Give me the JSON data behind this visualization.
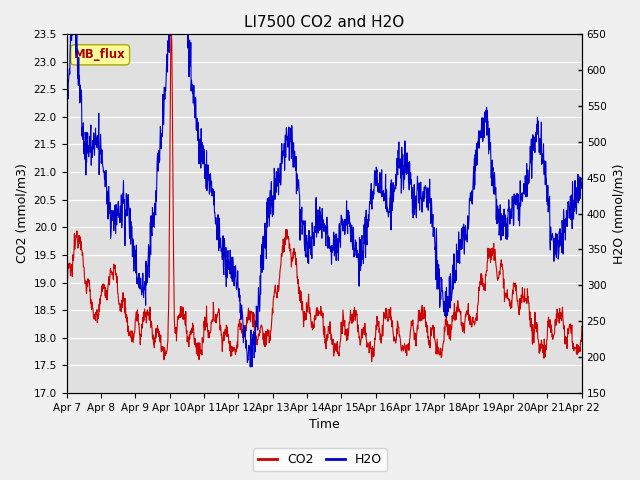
{
  "title": "LI7500 CO2 and H2O",
  "xlabel": "Time",
  "ylabel_left": "CO2 (mmol/m3)",
  "ylabel_right": "H2O (mmol/m3)",
  "co2_ylim": [
    17.0,
    23.5
  ],
  "h2o_ylim": [
    150,
    650
  ],
  "co2_yticks": [
    17.0,
    17.5,
    18.0,
    18.5,
    19.0,
    19.5,
    20.0,
    20.5,
    21.0,
    21.5,
    22.0,
    22.5,
    23.0,
    23.5
  ],
  "h2o_yticks": [
    150,
    200,
    250,
    300,
    350,
    400,
    450,
    500,
    550,
    600,
    650
  ],
  "xtick_labels": [
    "Apr 7",
    "Apr 8",
    "Apr 9",
    "Apr 10",
    "Apr 11",
    "Apr 12",
    "Apr 13",
    "Apr 14",
    "Apr 15",
    "Apr 16",
    "Apr 17",
    "Apr 18",
    "Apr 19",
    "Apr 20",
    "Apr 21",
    "Apr 22"
  ],
  "co2_color": "#cc0000",
  "h2o_color": "#0000cc",
  "fig_facecolor": "#f0f0f0",
  "plot_bg_color": "#e0e0e0",
  "grid_color": "#ffffff",
  "annotation_text": "MB_flux",
  "annotation_facecolor": "#ffff99",
  "annotation_edgecolor": "#aaaa00",
  "annotation_textcolor": "#aa0000",
  "title_fontsize": 11,
  "axis_label_fontsize": 9,
  "tick_fontsize": 7.5,
  "legend_fontsize": 9,
  "linewidth": 0.8
}
